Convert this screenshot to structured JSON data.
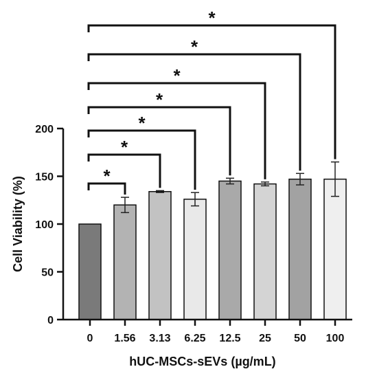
{
  "chart_data": {
    "type": "bar",
    "xlabel": "hUC-MSCs-sEVs (µg/mL)",
    "ylabel": "Cell Viability (%)",
    "ylim": [
      0,
      200
    ],
    "yticks": [
      0,
      50,
      100,
      150,
      200
    ],
    "categories": [
      "0",
      "1.56",
      "3.13",
      "6.25",
      "12.5",
      "25",
      "50",
      "100"
    ],
    "values": [
      100,
      120,
      134,
      126,
      145,
      142,
      147,
      147
    ],
    "errors": [
      0,
      8,
      1,
      7,
      3,
      2,
      6,
      18
    ],
    "bar_colors": [
      "#7a7a7a",
      "#b3b3b3",
      "#c2c2c2",
      "#e9e9e9",
      "#a9a9a9",
      "#d4d4d4",
      "#a2a2a2",
      "#efefef"
    ],
    "significance": [
      {
        "from": "0",
        "to": "1.56",
        "label": "*"
      },
      {
        "from": "0",
        "to": "3.13",
        "label": "*"
      },
      {
        "from": "0",
        "to": "6.25",
        "label": "*"
      },
      {
        "from": "0",
        "to": "12.5",
        "label": "*"
      },
      {
        "from": "0",
        "to": "25",
        "label": "*"
      },
      {
        "from": "0",
        "to": "50",
        "label": "*"
      },
      {
        "from": "0",
        "to": "100",
        "label": "*"
      }
    ],
    "grid": false,
    "legend": "none"
  }
}
